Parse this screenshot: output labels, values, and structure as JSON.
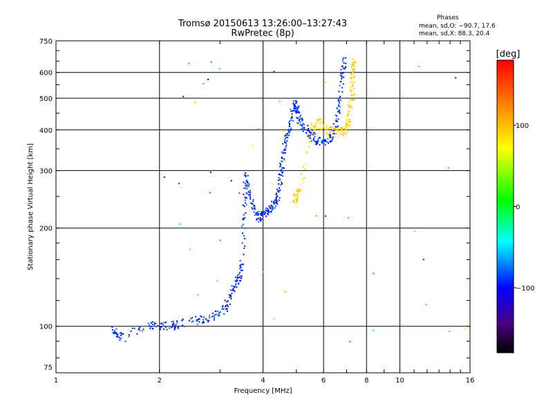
{
  "chart_data": {
    "type": "scatter",
    "title": "Tromsø 20150613 13:26:00–13:27:43",
    "subtitle": "RwPretec (8p)",
    "xlabel": "Frequency [MHz]",
    "ylabel": "Stationary phase Virtual Height [km]",
    "xscale": "log",
    "yscale": "log",
    "xlim": [
      1,
      16
    ],
    "ylim": [
      72,
      750
    ],
    "x_ticks": [
      1,
      2,
      4,
      6,
      8,
      10,
      16
    ],
    "x_tick_labels": [
      "1",
      "2",
      "4",
      "6",
      "8",
      "10",
      "16"
    ],
    "y_ticks": [
      75,
      100,
      200,
      300,
      400,
      500,
      600,
      750
    ],
    "y_tick_labels": [
      "75",
      "100",
      "200",
      "300",
      "400",
      "500",
      "600",
      "750"
    ],
    "grid_x": [
      2,
      4,
      6,
      8,
      10
    ],
    "grid_y": [
      100,
      200,
      300,
      400,
      500,
      600
    ],
    "legend": {
      "heading": "Phases",
      "line1": "mean, sd,O: −90.7, 17.6",
      "line2": "mean, sd,X:  88.3, 20.4"
    },
    "colorbar": {
      "label": "[deg]",
      "range": [
        -180,
        180
      ],
      "ticks": [
        100,
        0,
        -100
      ],
      "tick_labels": [
        "100",
        "0",
        "−100"
      ]
    },
    "series": [
      {
        "mode": "O",
        "phase_mean": -90.7,
        "phase_sd": 17.6,
        "trace": [
          [
            1.45,
            100
          ],
          [
            1.5,
            95
          ],
          [
            1.55,
            92
          ],
          [
            1.85,
            102
          ],
          [
            1.95,
            101
          ],
          [
            2.05,
            100
          ],
          [
            2.2,
            101
          ],
          [
            2.4,
            103
          ],
          [
            2.6,
            105
          ],
          [
            2.8,
            107
          ],
          [
            2.95,
            110
          ],
          [
            3.1,
            115
          ],
          [
            3.2,
            125
          ],
          [
            3.3,
            135
          ],
          [
            3.4,
            140
          ],
          [
            3.45,
            150
          ],
          [
            3.5,
            195
          ],
          [
            3.52,
            240
          ],
          [
            3.55,
            290
          ],
          [
            3.6,
            270
          ],
          [
            3.7,
            240
          ],
          [
            3.8,
            225
          ],
          [
            3.9,
            215
          ],
          [
            4.0,
            220
          ],
          [
            4.1,
            228
          ],
          [
            4.2,
            232
          ],
          [
            4.3,
            238
          ],
          [
            4.4,
            250
          ],
          [
            4.45,
            270
          ],
          [
            4.5,
            300
          ],
          [
            4.55,
            330
          ],
          [
            4.6,
            360
          ],
          [
            4.7,
            390
          ],
          [
            4.8,
            430
          ],
          [
            4.9,
            470
          ],
          [
            4.95,
            480
          ],
          [
            5.0,
            455
          ],
          [
            5.1,
            430
          ],
          [
            5.2,
            410
          ],
          [
            5.35,
            400
          ],
          [
            5.5,
            385
          ],
          [
            5.7,
            375
          ],
          [
            5.9,
            370
          ],
          [
            6.1,
            375
          ],
          [
            6.3,
            385
          ],
          [
            6.5,
            420
          ],
          [
            6.6,
            470
          ],
          [
            6.7,
            540
          ],
          [
            6.8,
            620
          ],
          [
            6.85,
            650
          ]
        ]
      },
      {
        "mode": "X",
        "phase_mean": 88.3,
        "phase_sd": 20.4,
        "trace": [
          [
            4.9,
            240
          ],
          [
            5.0,
            255
          ],
          [
            5.1,
            265
          ],
          [
            5.5,
            410
          ],
          [
            5.7,
            420
          ],
          [
            5.9,
            415
          ],
          [
            6.2,
            400
          ],
          [
            6.5,
            395
          ],
          [
            6.8,
            400
          ],
          [
            7.0,
            410
          ],
          [
            7.1,
            440
          ],
          [
            7.2,
            500
          ],
          [
            7.25,
            560
          ],
          [
            7.3,
            620
          ],
          [
            7.35,
            650
          ]
        ]
      }
    ]
  }
}
